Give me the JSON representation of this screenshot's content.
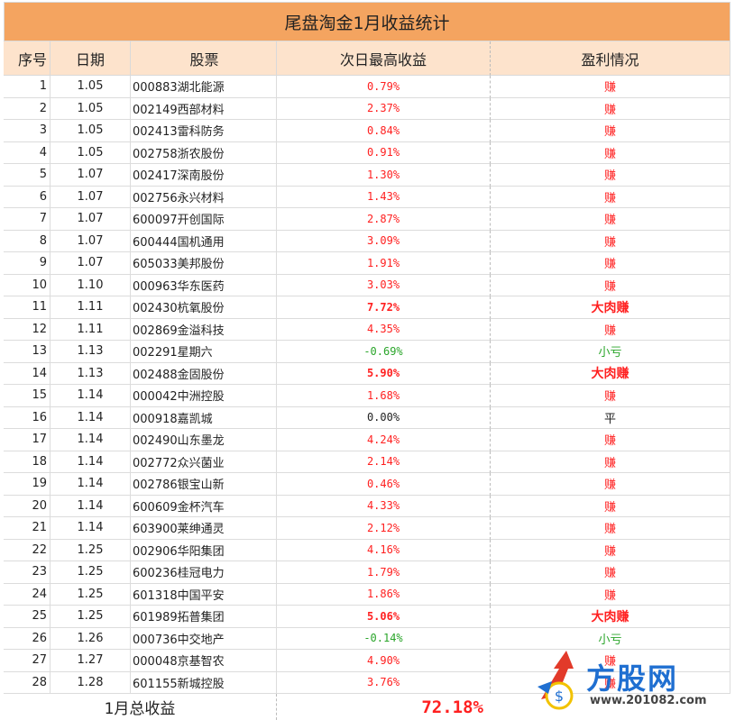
{
  "title": "尾盘淘金1月收益统计",
  "headers": {
    "no": "序号",
    "date": "日期",
    "stock": "股票",
    "max_return": "次日最高收益",
    "result": "盈利情况"
  },
  "rows": [
    {
      "no": "1",
      "date": "1.05",
      "stock": "000883湖北能源",
      "ret": "0.79%",
      "res": "赚",
      "tone": "red",
      "bold": false
    },
    {
      "no": "2",
      "date": "1.05",
      "stock": "002149西部材料",
      "ret": "2.37%",
      "res": "赚",
      "tone": "red",
      "bold": false
    },
    {
      "no": "3",
      "date": "1.05",
      "stock": "002413雷科防务",
      "ret": "0.84%",
      "res": "赚",
      "tone": "red",
      "bold": false
    },
    {
      "no": "4",
      "date": "1.05",
      "stock": "002758浙农股份",
      "ret": "0.91%",
      "res": "赚",
      "tone": "red",
      "bold": false
    },
    {
      "no": "5",
      "date": "1.07",
      "stock": "002417深南股份",
      "ret": "1.30%",
      "res": "赚",
      "tone": "red",
      "bold": false
    },
    {
      "no": "6",
      "date": "1.07",
      "stock": "002756永兴材料",
      "ret": "1.43%",
      "res": "赚",
      "tone": "red",
      "bold": false
    },
    {
      "no": "7",
      "date": "1.07",
      "stock": "600097开创国际",
      "ret": "2.87%",
      "res": "赚",
      "tone": "red",
      "bold": false
    },
    {
      "no": "8",
      "date": "1.07",
      "stock": "600444国机通用",
      "ret": "3.09%",
      "res": "赚",
      "tone": "red",
      "bold": false
    },
    {
      "no": "9",
      "date": "1.07",
      "stock": "605033美邦股份",
      "ret": "1.91%",
      "res": "赚",
      "tone": "red",
      "bold": false
    },
    {
      "no": "10",
      "date": "1.10",
      "stock": "000963华东医药",
      "ret": "3.03%",
      "res": "赚",
      "tone": "red",
      "bold": false
    },
    {
      "no": "11",
      "date": "1.11",
      "stock": "002430杭氧股份",
      "ret": "7.72%",
      "res": "大肉赚",
      "tone": "red",
      "bold": true
    },
    {
      "no": "12",
      "date": "1.11",
      "stock": "002869金溢科技",
      "ret": "4.35%",
      "res": "赚",
      "tone": "red",
      "bold": false
    },
    {
      "no": "13",
      "date": "1.13",
      "stock": "002291星期六",
      "ret": "-0.69%",
      "res": "小亏",
      "tone": "green",
      "bold": false
    },
    {
      "no": "14",
      "date": "1.13",
      "stock": "002488金固股份",
      "ret": "5.90%",
      "res": "大肉赚",
      "tone": "red",
      "bold": true
    },
    {
      "no": "15",
      "date": "1.14",
      "stock": "000042中洲控股",
      "ret": "1.68%",
      "res": "赚",
      "tone": "red",
      "bold": false
    },
    {
      "no": "16",
      "date": "1.14",
      "stock": "000918嘉凯城",
      "ret": "0.00%",
      "res": "平",
      "tone": "black",
      "bold": false
    },
    {
      "no": "17",
      "date": "1.14",
      "stock": "002490山东墨龙",
      "ret": "4.24%",
      "res": "赚",
      "tone": "red",
      "bold": false
    },
    {
      "no": "18",
      "date": "1.14",
      "stock": "002772众兴菌业",
      "ret": "2.14%",
      "res": "赚",
      "tone": "red",
      "bold": false
    },
    {
      "no": "19",
      "date": "1.14",
      "stock": "002786银宝山新",
      "ret": "0.46%",
      "res": "赚",
      "tone": "red",
      "bold": false
    },
    {
      "no": "20",
      "date": "1.14",
      "stock": "600609金杯汽车",
      "ret": "4.33%",
      "res": "赚",
      "tone": "red",
      "bold": false
    },
    {
      "no": "21",
      "date": "1.14",
      "stock": "603900莱绅通灵",
      "ret": "2.12%",
      "res": "赚",
      "tone": "red",
      "bold": false
    },
    {
      "no": "22",
      "date": "1.25",
      "stock": "002906华阳集团",
      "ret": "4.16%",
      "res": "赚",
      "tone": "red",
      "bold": false
    },
    {
      "no": "23",
      "date": "1.25",
      "stock": "600236桂冠电力",
      "ret": "1.79%",
      "res": "赚",
      "tone": "red",
      "bold": false
    },
    {
      "no": "24",
      "date": "1.25",
      "stock": "601318中国平安",
      "ret": "1.86%",
      "res": "赚",
      "tone": "red",
      "bold": false
    },
    {
      "no": "25",
      "date": "1.25",
      "stock": "601989拓普集团",
      "ret": "5.06%",
      "res": "大肉赚",
      "tone": "red",
      "bold": true
    },
    {
      "no": "26",
      "date": "1.26",
      "stock": "000736中交地产",
      "ret": "-0.14%",
      "res": "小亏",
      "tone": "green",
      "bold": false
    },
    {
      "no": "27",
      "date": "1.27",
      "stock": "000048京基智农",
      "ret": "4.90%",
      "res": "赚",
      "tone": "red",
      "bold": false
    },
    {
      "no": "28",
      "date": "1.28",
      "stock": "601155新城控股",
      "ret": "3.76%",
      "res": "赚",
      "tone": "red",
      "bold": false
    }
  ],
  "total": {
    "label": "1月总收益",
    "value": "72.18%"
  },
  "watermark": {
    "logo_text": "方股网",
    "url": "www.201082.com",
    "colors": {
      "red": "#e23a2a",
      "blue": "#1f6fd1",
      "yellow": "#f2c200"
    }
  },
  "colors": {
    "title_bg": "#f4a460",
    "header_bg": "#fde3cc",
    "gain": "#ff2020",
    "loss": "#2aa52a"
  }
}
